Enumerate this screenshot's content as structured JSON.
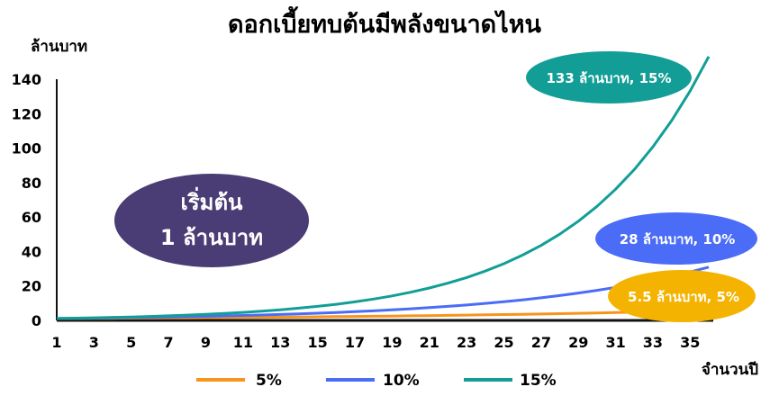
{
  "chart_data": {
    "type": "line",
    "title": "ดอกเบี้ยทบต้นมีพลังขนาดไหน",
    "ylabel": "ล้านบาท",
    "xlabel": "จำนวนปี",
    "ylim": [
      0,
      140
    ],
    "xlim": [
      1,
      36
    ],
    "y_ticks": [
      0,
      20,
      40,
      60,
      80,
      100,
      120,
      140
    ],
    "x_ticks": [
      1,
      3,
      5,
      7,
      9,
      11,
      13,
      15,
      17,
      19,
      21,
      23,
      25,
      27,
      29,
      31,
      33,
      35
    ],
    "x": [
      1,
      2,
      3,
      4,
      5,
      6,
      7,
      8,
      9,
      10,
      11,
      12,
      13,
      14,
      15,
      16,
      17,
      18,
      19,
      20,
      21,
      22,
      23,
      24,
      25,
      26,
      27,
      28,
      29,
      30,
      31,
      32,
      33,
      34,
      35,
      36
    ],
    "series": [
      {
        "name": "5%",
        "color": "#F7941D",
        "values": [
          1.05,
          1.1,
          1.16,
          1.22,
          1.28,
          1.34,
          1.41,
          1.48,
          1.55,
          1.63,
          1.71,
          1.8,
          1.89,
          1.98,
          2.08,
          2.18,
          2.29,
          2.41,
          2.53,
          2.65,
          2.79,
          2.93,
          3.07,
          3.23,
          3.39,
          3.56,
          3.73,
          3.92,
          4.12,
          4.32,
          4.54,
          4.76,
          5.0,
          5.25,
          5.52,
          5.79
        ]
      },
      {
        "name": "10%",
        "color": "#4A6CF7",
        "values": [
          1.1,
          1.21,
          1.33,
          1.46,
          1.61,
          1.77,
          1.95,
          2.14,
          2.36,
          2.59,
          2.85,
          3.14,
          3.45,
          3.8,
          4.18,
          4.59,
          5.05,
          5.56,
          6.12,
          6.73,
          7.4,
          8.14,
          8.95,
          9.85,
          10.83,
          11.92,
          13.11,
          14.42,
          15.86,
          17.45,
          19.19,
          21.11,
          23.23,
          25.55,
          28.1,
          30.91
        ]
      },
      {
        "name": "15%",
        "color": "#129E96",
        "values": [
          1.15,
          1.32,
          1.52,
          1.75,
          2.01,
          2.31,
          2.66,
          3.06,
          3.52,
          4.05,
          4.65,
          5.35,
          6.15,
          7.08,
          8.14,
          9.36,
          10.76,
          12.38,
          14.23,
          16.37,
          18.82,
          21.64,
          24.89,
          28.63,
          32.92,
          37.86,
          43.54,
          50.07,
          57.58,
          66.21,
          76.14,
          87.57,
          100.7,
          115.8,
          133.18,
          153.15
        ]
      }
    ],
    "legend_position": "bottom",
    "grid": false,
    "annotations": [
      {
        "text": "133 ล้านบาท, 15%",
        "color": "#129E96"
      },
      {
        "text": "28 ล้านบาท, 10%",
        "color": "#4A6CF7"
      },
      {
        "text": "5.5 ล้านบาท, 5%",
        "color": "#F5B301"
      }
    ],
    "callout": {
      "line1": "เริ่มต้น",
      "line2": "1 ล้านบาท",
      "color": "#4A3C74"
    }
  }
}
